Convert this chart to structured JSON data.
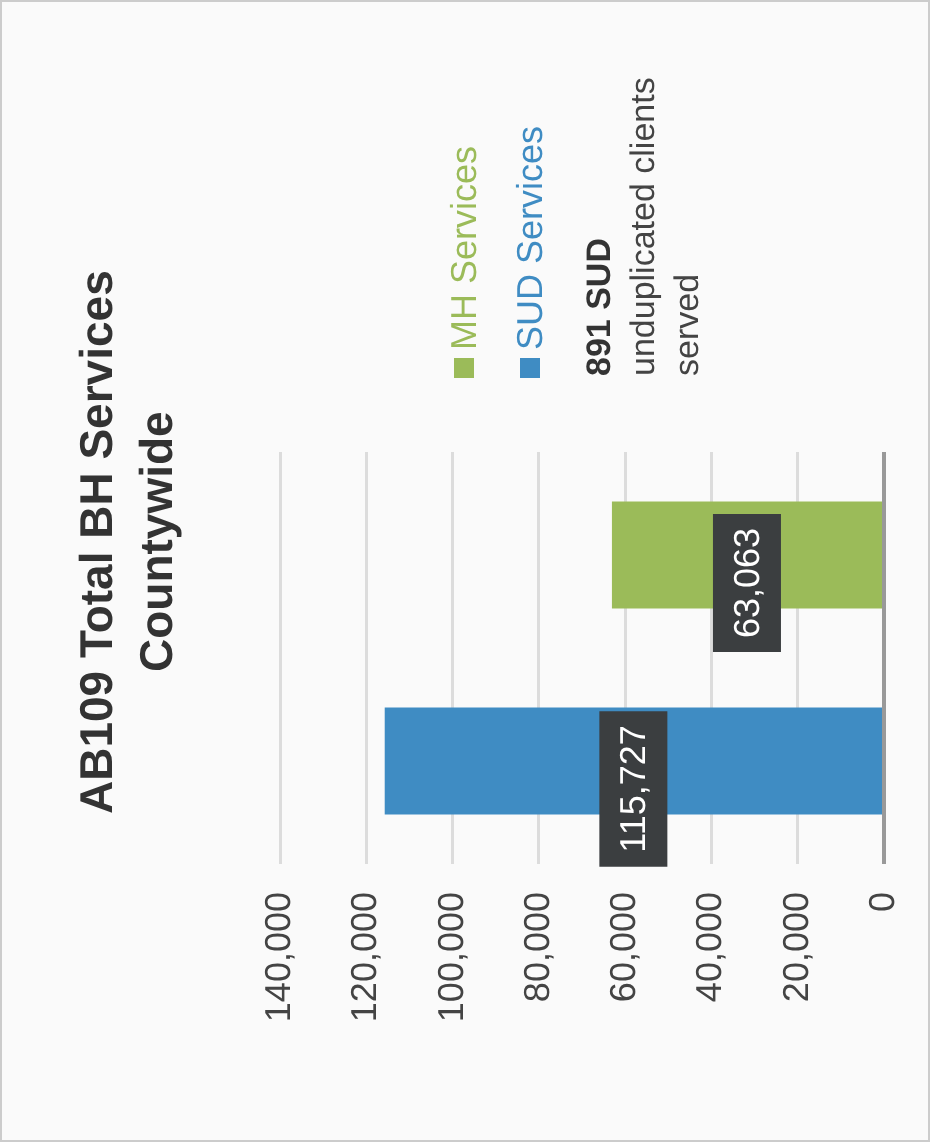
{
  "chart_data": {
    "type": "bar",
    "orientation": "horizontal",
    "title": "AB109 Total BH Services Countywide",
    "categories": [
      null
    ],
    "series": [
      {
        "name": "MH Services",
        "color": "#9bbb59",
        "values": [
          63063
        ],
        "value_labels": [
          "63,063"
        ]
      },
      {
        "name": "SUD Services",
        "color": "#3f8cc3",
        "values": [
          115727
        ],
        "value_labels": [
          "115,727"
        ]
      }
    ],
    "xlim": [
      140000,
      0
    ],
    "xticks": [
      0,
      {
        "value": 20000,
        "label": "20,000"
      },
      {
        "value": 40000,
        "label": "40,000"
      },
      {
        "value": 60000,
        "label": "60,000"
      },
      {
        "value": 80000,
        "label": "80,000"
      },
      {
        "value": 100000,
        "label": "100,000"
      },
      {
        "value": 120000,
        "label": "120,000"
      },
      {
        "value": 140000,
        "label": "140,000"
      }
    ],
    "grid": "x",
    "legend": "top",
    "annotations": [
      "891 SUD unduplicated clients served"
    ]
  }
}
